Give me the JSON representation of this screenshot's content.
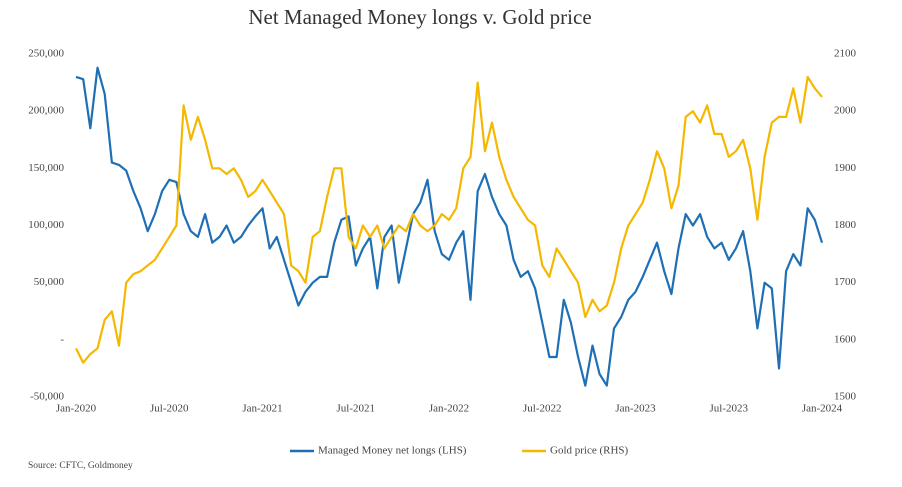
{
  "chart_data": {
    "type": "line",
    "title": "Net Managed Money longs v. Gold price",
    "source": "Source: CFTC, Goldmoney",
    "categories": [
      "Jan-2020",
      null,
      null,
      null,
      null,
      null,
      null,
      null,
      null,
      null,
      null,
      null,
      null,
      "Jul-2020",
      null,
      null,
      null,
      null,
      null,
      null,
      null,
      null,
      null,
      null,
      null,
      null,
      "Jan-2021",
      null,
      null,
      null,
      null,
      null,
      null,
      null,
      null,
      null,
      null,
      null,
      null,
      "Jul-2021",
      null,
      null,
      null,
      null,
      null,
      null,
      null,
      null,
      null,
      null,
      null,
      null,
      "Jan-2022",
      null,
      null,
      null,
      null,
      null,
      null,
      null,
      null,
      null,
      null,
      null,
      null,
      "Jul-2022",
      null,
      null,
      null,
      null,
      null,
      null,
      null,
      null,
      null,
      null,
      null,
      null,
      "Jan-2023",
      null,
      null,
      null,
      null,
      null,
      null,
      null,
      null,
      null,
      null,
      null,
      null,
      "Jul-2023",
      null,
      null,
      null,
      null,
      null,
      null,
      null,
      null,
      null,
      null,
      null,
      null,
      "Jan-2024"
    ],
    "series": [
      {
        "name": "Managed Money net longs (LHS)",
        "color": "#1f6fb5",
        "axis": "y",
        "values": [
          230000,
          228000,
          185000,
          238000,
          215000,
          155000,
          153000,
          148000,
          130000,
          115000,
          95000,
          110000,
          130000,
          140000,
          138000,
          110000,
          95000,
          90000,
          110000,
          85000,
          90000,
          100000,
          85000,
          90000,
          100000,
          108000,
          115000,
          80000,
          90000,
          70000,
          50000,
          30000,
          42000,
          50000,
          55000,
          55000,
          85000,
          105000,
          108000,
          65000,
          80000,
          90000,
          45000,
          90000,
          100000,
          50000,
          80000,
          110000,
          120000,
          140000,
          95000,
          75000,
          70000,
          85000,
          95000,
          35000,
          130000,
          145000,
          125000,
          110000,
          100000,
          70000,
          55000,
          60000,
          45000,
          15000,
          -15000,
          -15000,
          35000,
          15000,
          -15000,
          -40000,
          -5000,
          -30000,
          -40000,
          10000,
          20000,
          35000,
          42000,
          55000,
          70000,
          85000,
          60000,
          40000,
          80000,
          110000,
          100000,
          110000,
          90000,
          80000,
          85000,
          70000,
          80000,
          95000,
          60000,
          10000,
          50000,
          45000,
          -25000,
          60000,
          75000,
          65000,
          115000,
          105000,
          85000
        ]
      },
      {
        "name": "Gold price (RHS)",
        "color": "#f5b800",
        "axis": "y2",
        "values": [
          1585,
          1560,
          1575,
          1585,
          1635,
          1650,
          1590,
          1700,
          1715,
          1720,
          1730,
          1740,
          1760,
          1780,
          1800,
          2010,
          1950,
          1990,
          1950,
          1900,
          1900,
          1890,
          1900,
          1880,
          1850,
          1860,
          1880,
          1860,
          1840,
          1820,
          1730,
          1720,
          1700,
          1780,
          1790,
          1850,
          1900,
          1900,
          1780,
          1760,
          1800,
          1780,
          1800,
          1760,
          1780,
          1800,
          1790,
          1820,
          1800,
          1790,
          1800,
          1820,
          1810,
          1830,
          1900,
          1920,
          2050,
          1930,
          1980,
          1920,
          1880,
          1850,
          1830,
          1810,
          1800,
          1730,
          1710,
          1760,
          1740,
          1720,
          1700,
          1640,
          1670,
          1650,
          1660,
          1700,
          1760,
          1800,
          1820,
          1840,
          1880,
          1930,
          1900,
          1830,
          1870,
          1990,
          2000,
          1980,
          2010,
          1960,
          1960,
          1920,
          1930,
          1950,
          1900,
          1810,
          1920,
          1980,
          1990,
          1990,
          2040,
          1980,
          2060,
          2040,
          2025
        ]
      }
    ],
    "ylim": [
      -50000,
      250000
    ],
    "yticks": [
      {
        "value": -50000,
        "label": "-50,000"
      },
      {
        "value": 0,
        "label": "-"
      },
      {
        "value": 50000,
        "label": "50,000"
      },
      {
        "value": 100000,
        "label": "100,000"
      },
      {
        "value": 150000,
        "label": "150,000"
      },
      {
        "value": 200000,
        "label": "200,000"
      },
      {
        "value": 250000,
        "label": "250,000"
      }
    ],
    "y2lim": [
      1500,
      2100
    ],
    "y2ticks": [
      1500,
      1600,
      1700,
      1800,
      1900,
      2000,
      2100
    ],
    "grid": false
  }
}
